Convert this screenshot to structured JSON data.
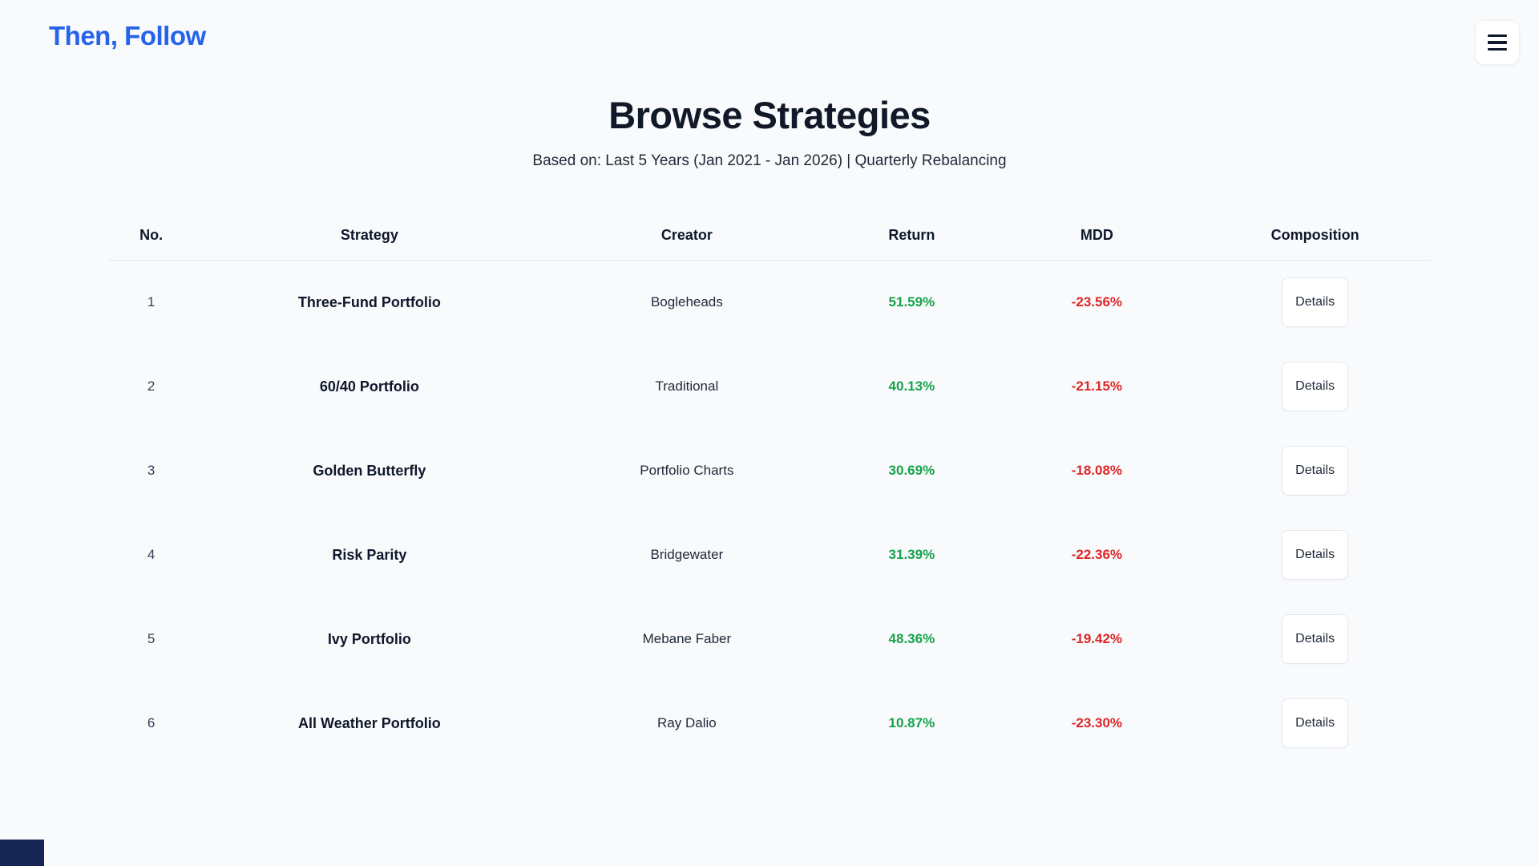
{
  "header": {
    "logo_text": "Then, Follow",
    "menu_icon": "hamburger-icon"
  },
  "page": {
    "title": "Browse Strategies",
    "subtitle": "Based on: Last 5 Years (Jan 2021 - Jan 2026) | Quarterly Rebalancing"
  },
  "table": {
    "columns": [
      "No.",
      "Strategy",
      "Creator",
      "Return",
      "MDD",
      "Composition"
    ],
    "rows": [
      {
        "no": "1",
        "strategy": "Three-Fund Portfolio",
        "creator": "Bogleheads",
        "return": "51.59%",
        "mdd": "-23.56%",
        "details_label": "Details"
      },
      {
        "no": "2",
        "strategy": "60/40 Portfolio",
        "creator": "Traditional",
        "return": "40.13%",
        "mdd": "-21.15%",
        "details_label": "Details"
      },
      {
        "no": "3",
        "strategy": "Golden Butterfly",
        "creator": "Portfolio Charts",
        "return": "30.69%",
        "mdd": "-18.08%",
        "details_label": "Details"
      },
      {
        "no": "4",
        "strategy": "Risk Parity",
        "creator": "Bridgewater",
        "return": "31.39%",
        "mdd": "-22.36%",
        "details_label": "Details"
      },
      {
        "no": "5",
        "strategy": "Ivy Portfolio",
        "creator": "Mebane Faber",
        "return": "48.36%",
        "mdd": "-19.42%",
        "details_label": "Details"
      },
      {
        "no": "6",
        "strategy": "All Weather Portfolio",
        "creator": "Ray Dalio",
        "return": "10.87%",
        "mdd": "-23.30%",
        "details_label": "Details"
      }
    ]
  },
  "colors": {
    "accent_blue": "#2563eb",
    "positive_green": "#16a34a",
    "negative_red": "#dc2626",
    "background": "#f8fafc"
  }
}
